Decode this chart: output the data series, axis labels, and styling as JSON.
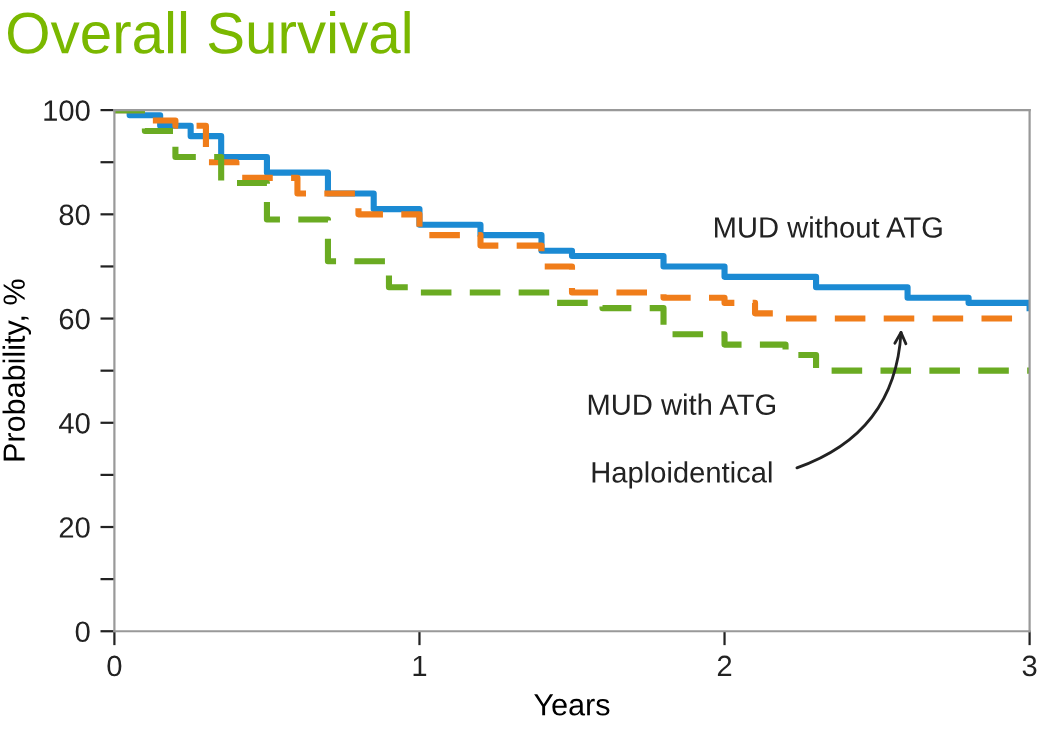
{
  "chart_data": {
    "type": "step",
    "title": "Overall Survival",
    "xlabel": "Years",
    "ylabel": "Probability, %",
    "xlim": [
      0,
      3
    ],
    "xticks": [
      0,
      1,
      2,
      3
    ],
    "ylim": [
      0,
      100
    ],
    "yticks": [
      0,
      {
        "value": 10,
        "label": null
      },
      20,
      {
        "value": 30,
        "label": null
      },
      40,
      {
        "value": 50,
        "label": null
      },
      60,
      {
        "value": 70,
        "label": null
      },
      80,
      {
        "value": 90,
        "label": null
      },
      100
    ],
    "grid": false,
    "legend": false,
    "series": [
      {
        "name": "MUD without ATG",
        "color": "#1b8ad3",
        "line_style": "solid",
        "x": [
          0,
          0.05,
          0.15,
          0.25,
          0.35,
          0.5,
          0.7,
          0.85,
          1,
          1.2,
          1.4,
          1.5,
          1.8,
          2,
          2.3,
          2.6,
          2.8,
          3
        ],
        "values": [
          100,
          99,
          97,
          95,
          91,
          88,
          84,
          81,
          78,
          76,
          73,
          72,
          70,
          68,
          66,
          64,
          63,
          62
        ]
      },
      {
        "name": "Haploidentical",
        "color": "#f07d1a",
        "line_style": "dashed",
        "x": [
          0,
          0.1,
          0.2,
          0.3,
          0.4,
          0.6,
          0.8,
          1,
          1.2,
          1.4,
          1.5,
          1.8,
          2,
          2.1,
          2.2,
          3
        ],
        "values": [
          100,
          98,
          97,
          90,
          87,
          84,
          80,
          76,
          74,
          70,
          65,
          64,
          63,
          61,
          60,
          60
        ]
      },
      {
        "name": "MUD with ATG",
        "color": "#6aab22",
        "line_style": "dashed",
        "x": [
          0,
          0.1,
          0.2,
          0.35,
          0.5,
          0.7,
          0.9,
          1,
          1.3,
          1.45,
          1.6,
          1.8,
          2,
          2.2,
          2.3,
          3
        ],
        "values": [
          100,
          96,
          91,
          86,
          79,
          71,
          66,
          65,
          65,
          63,
          62,
          57,
          55,
          53,
          50,
          50
        ]
      }
    ]
  }
}
